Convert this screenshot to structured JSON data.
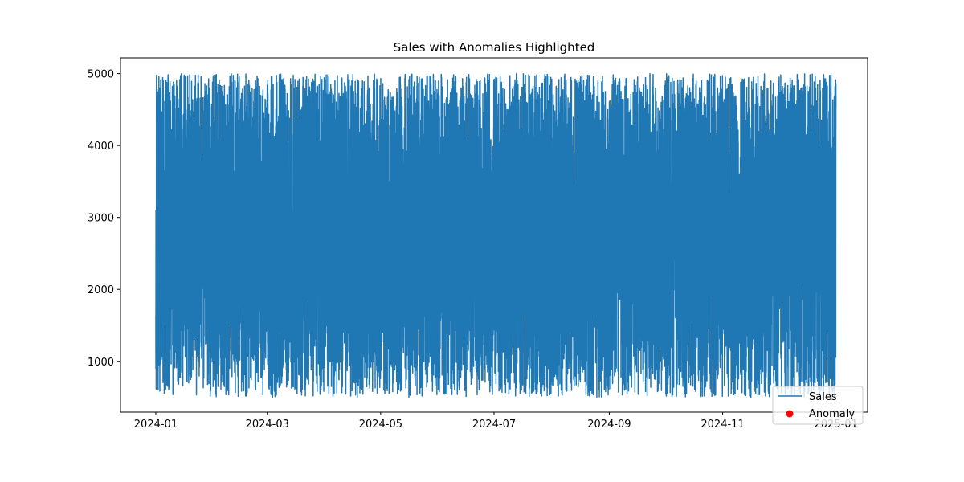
{
  "chart_data": {
    "type": "line",
    "title": "Sales with Anomalies Highlighted",
    "xlabel": "",
    "ylabel": "",
    "xlim": [
      "2023-12-13",
      "2025-01-18"
    ],
    "ylim": [
      294,
      5219
    ],
    "x_ticks": [
      "2024-01",
      "2024-03",
      "2024-05",
      "2024-07",
      "2024-09",
      "2024-11",
      "2025-01"
    ],
    "y_ticks": [
      1000,
      2000,
      3000,
      4000,
      5000
    ],
    "y_tick_labels": [
      "1000",
      "2000",
      "3000",
      "4000",
      "5000"
    ],
    "grid": false,
    "legend_position": "bottom-right",
    "series": [
      {
        "name": "Sales",
        "kind": "line",
        "color": "#1f77b4",
        "sampling": "hourly",
        "x_start": "2024-01-01",
        "x_end": "2024-12-31",
        "value_range": [
          500,
          5000
        ]
      },
      {
        "name": "Anomaly",
        "kind": "scatter",
        "color": "#ff0000",
        "points": []
      }
    ]
  }
}
